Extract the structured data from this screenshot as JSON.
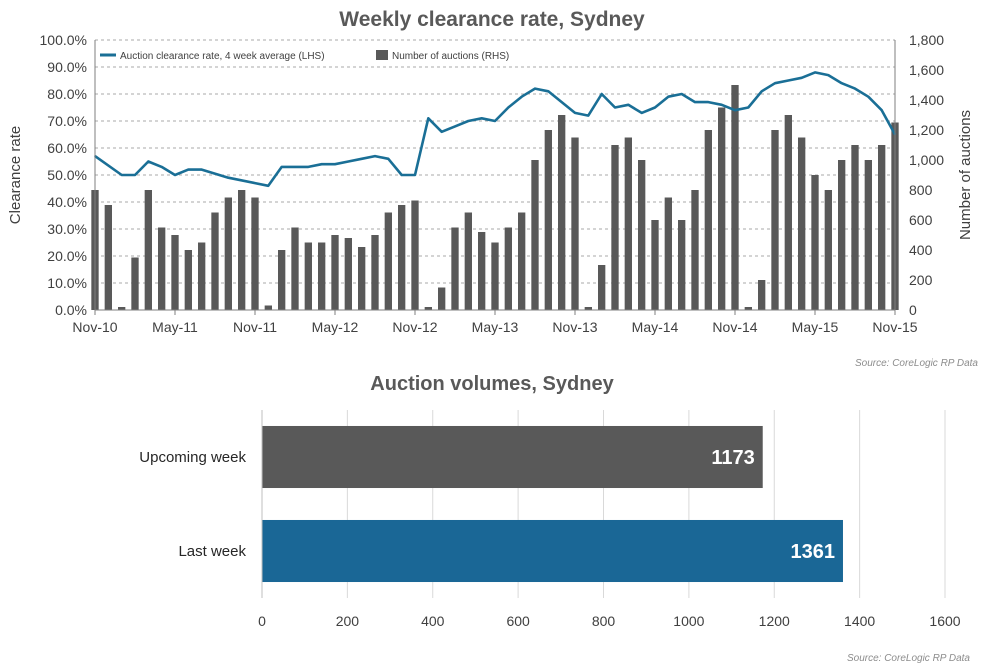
{
  "chart_data": [
    {
      "type": "bar+line",
      "title": "Weekly clearance rate, Sydney",
      "ylabel_left": "Clearance rate",
      "ylabel_right": "Number of auctions",
      "x_ticks": [
        "Nov-10",
        "May-11",
        "Nov-11",
        "May-12",
        "Nov-12",
        "May-13",
        "Nov-13",
        "May-14",
        "Nov-14",
        "May-15",
        "Nov-15"
      ],
      "ylim_left": [
        0,
        100
      ],
      "y_ticks_left": [
        "0.0%",
        "10.0%",
        "20.0%",
        "30.0%",
        "40.0%",
        "50.0%",
        "60.0%",
        "70.0%",
        "80.0%",
        "90.0%",
        "100.0%"
      ],
      "ylim_right": [
        0,
        1800
      ],
      "y_ticks_right": [
        "0",
        "200",
        "400",
        "600",
        "800",
        "1,000",
        "1,200",
        "1,400",
        "1,600",
        "1,800"
      ],
      "legend_position": "top-left",
      "grid": "horizontal dashed",
      "series": [
        {
          "name": "Auction clearance rate, 4 week average (LHS)",
          "kind": "line",
          "axis": "left",
          "color": "#1a6f96",
          "x": [
            "Nov-10",
            "Jan-11",
            "Feb-11",
            "Mar-11",
            "Apr-11",
            "May-11",
            "Jun-11",
            "Jul-11",
            "Sep-11",
            "Nov-11",
            "Dec-11",
            "Jan-12",
            "Feb-12",
            "Mar-12",
            "Apr-12",
            "May-12",
            "Jun-12",
            "Jul-12",
            "Aug-12",
            "Sep-12",
            "Oct-12",
            "Nov-12",
            "Dec-12",
            "Jan-13",
            "Feb-13",
            "Mar-13",
            "Apr-13",
            "May-13",
            "Jun-13",
            "Jul-13",
            "Aug-13",
            "Sep-13",
            "Oct-13",
            "Nov-13",
            "Dec-13",
            "Jan-14",
            "Feb-14",
            "Mar-14",
            "Apr-14",
            "May-14",
            "Jun-14",
            "Jul-14",
            "Aug-14",
            "Sep-14",
            "Oct-14",
            "Nov-14",
            "Dec-14",
            "Jan-15",
            "Feb-15",
            "Mar-15",
            "Apr-15",
            "May-15",
            "Jun-15",
            "Jul-15",
            "Aug-15",
            "Sep-15",
            "Oct-15",
            "Nov-15"
          ],
          "values": [
            57,
            50,
            50,
            55,
            53,
            50,
            52,
            52,
            49,
            47,
            46,
            53,
            53,
            53,
            54,
            54,
            55,
            56,
            57,
            56,
            50,
            50,
            71,
            66,
            68,
            70,
            71,
            70,
            75,
            79,
            82,
            81,
            77,
            73,
            72,
            80,
            75,
            76,
            73,
            75,
            79,
            80,
            77,
            77,
            76,
            74,
            75,
            81,
            84,
            85,
            86,
            88,
            87,
            84,
            82,
            79,
            74,
            65
          ]
        },
        {
          "name": "Number of auctions (RHS)",
          "kind": "bar",
          "axis": "right",
          "color": "#595959",
          "x": [
            "Nov-10",
            "Dec-10",
            "Jan-11",
            "Feb-11",
            "Mar-11",
            "Apr-11",
            "May-11",
            "Jun-11",
            "Jul-11",
            "Aug-11",
            "Sep-11",
            "Oct-11",
            "Nov-11",
            "Dec-11",
            "Jan-12",
            "Feb-12",
            "Mar-12",
            "Apr-12",
            "May-12",
            "Jun-12",
            "Jul-12",
            "Aug-12",
            "Sep-12",
            "Oct-12",
            "Nov-12",
            "Dec-12",
            "Jan-13",
            "Feb-13",
            "Mar-13",
            "Apr-13",
            "May-13",
            "Jun-13",
            "Jul-13",
            "Aug-13",
            "Sep-13",
            "Oct-13",
            "Nov-13",
            "Dec-13",
            "Jan-14",
            "Feb-14",
            "Mar-14",
            "Apr-14",
            "May-14",
            "Jun-14",
            "Jul-14",
            "Aug-14",
            "Sep-14",
            "Oct-14",
            "Nov-14",
            "Dec-14",
            "Jan-15",
            "Feb-15",
            "Mar-15",
            "Apr-15",
            "May-15",
            "Jun-15",
            "Jul-15",
            "Aug-15",
            "Sep-15",
            "Oct-15",
            "Nov-15"
          ],
          "values": [
            800,
            700,
            20,
            350,
            800,
            550,
            500,
            400,
            450,
            650,
            750,
            800,
            750,
            30,
            400,
            550,
            450,
            450,
            500,
            480,
            420,
            500,
            650,
            700,
            730,
            20,
            150,
            550,
            650,
            520,
            450,
            550,
            650,
            1000,
            1200,
            1300,
            1150,
            20,
            300,
            1100,
            1150,
            1000,
            600,
            750,
            600,
            800,
            1200,
            1350,
            1500,
            20,
            200,
            1200,
            1300,
            1150,
            900,
            800,
            1000,
            1100,
            1000,
            1100,
            1250
          ]
        }
      ],
      "source": "Source: CoreLogic  RP Data"
    },
    {
      "type": "bar",
      "orientation": "horizontal",
      "title": "Auction volumes, Sydney",
      "categories": [
        "Upcoming week",
        "Last week"
      ],
      "values": [
        1173,
        1361
      ],
      "value_labels": [
        "1173",
        "1361"
      ],
      "colors": [
        "#595959",
        "#1a6796"
      ],
      "xlim": [
        0,
        1600
      ],
      "x_ticks": [
        "0",
        "200",
        "400",
        "600",
        "800",
        "1000",
        "1200",
        "1400",
        "1600"
      ],
      "grid": "vertical",
      "source": "Source: CoreLogic  RP Data"
    }
  ]
}
